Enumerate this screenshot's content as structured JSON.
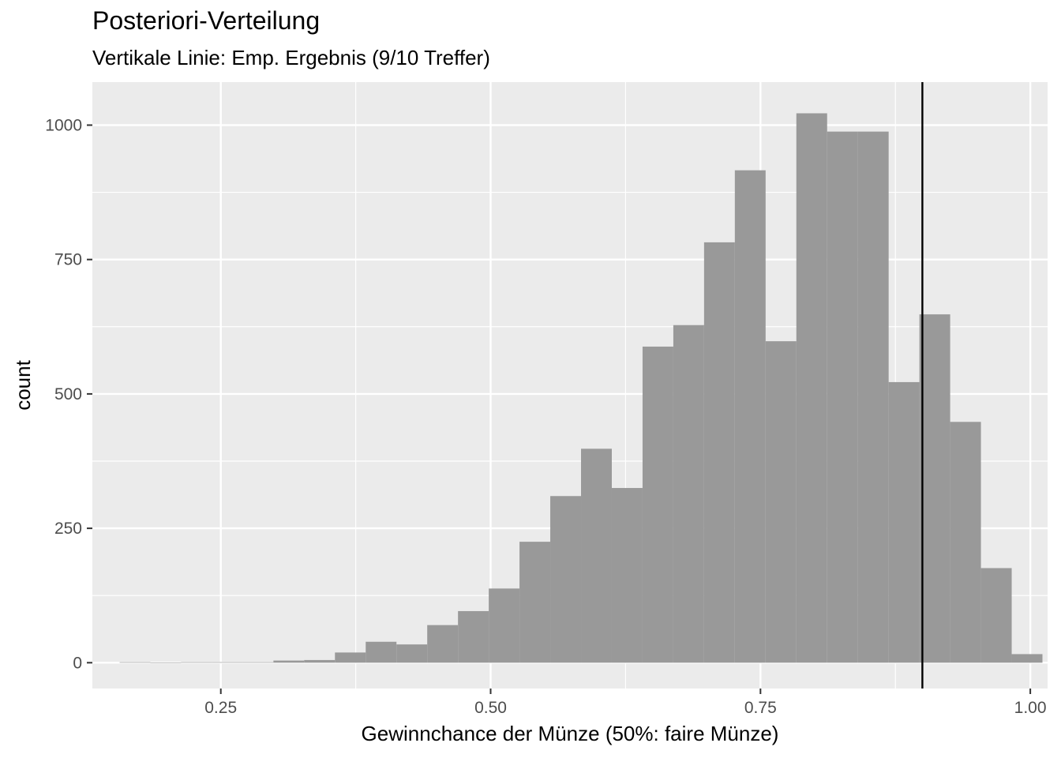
{
  "chart_data": {
    "type": "bar",
    "title": "Posteriori-Verteilung",
    "subtitle": "Vertikale Linie: Emp. Ergebnis (9/10 Treffer)",
    "xlabel": "Gewinnchance der Münze (50%: faire Münze)",
    "ylabel": "count",
    "xlim": [
      0.131,
      1.016
    ],
    "ylim": [
      -48,
      1080
    ],
    "xticks": [
      0.25,
      0.5,
      0.75,
      1.0
    ],
    "xtick_labels": [
      "0.25",
      "0.50",
      "0.75",
      "1.00"
    ],
    "yticks": [
      0,
      250,
      500,
      750,
      1000
    ],
    "ytick_labels": [
      "0",
      "250",
      "500",
      "750",
      "1000"
    ],
    "bin_width": 0.0285,
    "bin_centers": [
      0.1705,
      0.199,
      0.2275,
      0.256,
      0.2845,
      0.313,
      0.3415,
      0.37,
      0.3985,
      0.427,
      0.4555,
      0.484,
      0.5125,
      0.541,
      0.5695,
      0.598,
      0.6265,
      0.655,
      0.6835,
      0.712,
      0.7405,
      0.769,
      0.7975,
      0.826,
      0.8545,
      0.883,
      0.9115,
      0.94,
      0.9685,
      0.997
    ],
    "values": [
      1,
      0,
      1,
      1,
      1,
      4,
      5,
      19,
      39,
      34,
      70,
      96,
      138,
      225,
      310,
      398,
      325,
      588,
      628,
      782,
      916,
      598,
      1022,
      988,
      988,
      522,
      648,
      448,
      176,
      16
    ],
    "reference_line": {
      "x": 0.9
    },
    "grid": true,
    "legend": "none",
    "colors": {
      "panel_background": "#ebebeb",
      "grid_major": "#ffffff",
      "bar_fill": "#999999",
      "reference_line": "#000000",
      "axis_text": "#4d4d4d"
    }
  }
}
